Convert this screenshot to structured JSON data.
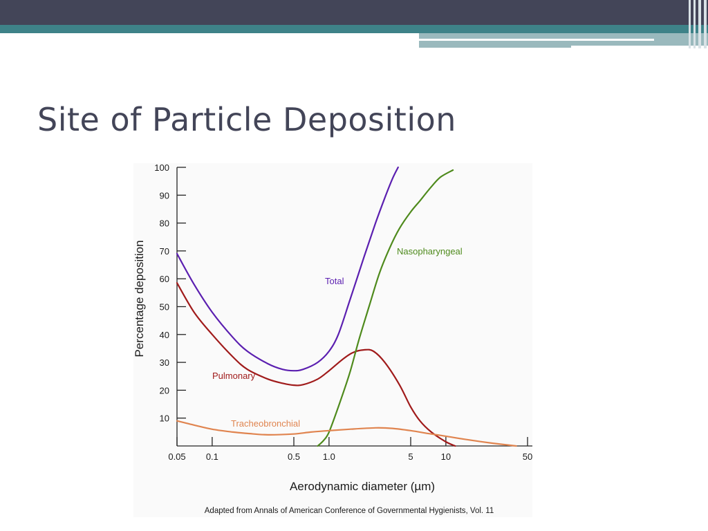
{
  "slide": {
    "title": "Site of Particle Deposition"
  },
  "colors": {
    "header_dark": "#434558",
    "header_teal": "#3e8288",
    "title_text": "#434558",
    "total": "#5b1fb0",
    "pulmonary": "#a01b1b",
    "nasopharyngeal": "#4e8a1c",
    "tracheobronchial": "#e0844f"
  },
  "chart_data": {
    "type": "line",
    "xlabel": "Aerodynamic diameter (µm)",
    "ylabel": "Percentage deposition",
    "x_scale": "log",
    "xlim": [
      0.05,
      50
    ],
    "ylim": [
      0,
      100
    ],
    "x_ticks": [
      {
        "value": 0.05,
        "label": "0.05"
      },
      {
        "value": 0.1,
        "label": "0.1"
      },
      {
        "value": 0.5,
        "label": "0.5"
      },
      {
        "value": 1.0,
        "label": "1.0"
      },
      {
        "value": 5,
        "label": "5"
      },
      {
        "value": 10,
        "label": "10"
      },
      {
        "value": 50,
        "label": "50"
      }
    ],
    "y_ticks": [
      {
        "value": 10,
        "label": "10"
      },
      {
        "value": 20,
        "label": "20"
      },
      {
        "value": 30,
        "label": "30"
      },
      {
        "value": 40,
        "label": "40"
      },
      {
        "value": 50,
        "label": "50"
      },
      {
        "value": 60,
        "label": "60"
      },
      {
        "value": 70,
        "label": "70"
      },
      {
        "value": 80,
        "label": "80"
      },
      {
        "value": 90,
        "label": "90"
      },
      {
        "value": 100,
        "label": "100"
      }
    ],
    "series": [
      {
        "key": "total",
        "name": "Total",
        "color": "#5b1fb0",
        "points": [
          [
            0.05,
            69
          ],
          [
            0.07,
            58
          ],
          [
            0.1,
            48
          ],
          [
            0.15,
            39
          ],
          [
            0.2,
            34
          ],
          [
            0.3,
            29.5
          ],
          [
            0.4,
            27.5
          ],
          [
            0.5,
            27
          ],
          [
            0.6,
            27.5
          ],
          [
            0.8,
            30
          ],
          [
            1.0,
            34
          ],
          [
            1.2,
            40
          ],
          [
            1.5,
            52
          ],
          [
            2.0,
            68
          ],
          [
            2.5,
            80
          ],
          [
            3.0,
            89
          ],
          [
            3.5,
            96
          ],
          [
            3.9,
            100
          ]
        ]
      },
      {
        "key": "pulmonary",
        "name": "Pulmonary",
        "color": "#a01b1b",
        "points": [
          [
            0.05,
            58.5
          ],
          [
            0.07,
            48
          ],
          [
            0.1,
            40
          ],
          [
            0.15,
            32
          ],
          [
            0.2,
            27.5
          ],
          [
            0.3,
            24
          ],
          [
            0.4,
            22.5
          ],
          [
            0.5,
            21.8
          ],
          [
            0.6,
            22
          ],
          [
            0.8,
            24
          ],
          [
            1.0,
            27
          ],
          [
            1.3,
            31
          ],
          [
            1.6,
            33.5
          ],
          [
            2.0,
            34.5
          ],
          [
            2.4,
            34
          ],
          [
            3.0,
            30
          ],
          [
            4.0,
            22
          ],
          [
            5.0,
            14
          ],
          [
            6.0,
            9
          ],
          [
            7.5,
            5
          ],
          [
            10,
            1.5
          ],
          [
            12,
            0
          ]
        ]
      },
      {
        "key": "nasopharyngeal",
        "name": "Nasopharyngeal",
        "color": "#4e8a1c",
        "points": [
          [
            0.8,
            0
          ],
          [
            0.9,
            2
          ],
          [
            1.0,
            5
          ],
          [
            1.2,
            14
          ],
          [
            1.5,
            26
          ],
          [
            1.8,
            38
          ],
          [
            2.2,
            50
          ],
          [
            2.7,
            62
          ],
          [
            3.3,
            71
          ],
          [
            4.0,
            78
          ],
          [
            5.0,
            84
          ],
          [
            6.0,
            88
          ],
          [
            7.5,
            93
          ],
          [
            9.0,
            96.5
          ],
          [
            11.5,
            99
          ]
        ]
      },
      {
        "key": "tracheobronchial",
        "name": "Tracheobronchial",
        "color": "#e0844f",
        "points": [
          [
            0.05,
            9
          ],
          [
            0.07,
            7.5
          ],
          [
            0.1,
            6
          ],
          [
            0.15,
            5
          ],
          [
            0.2,
            4.5
          ],
          [
            0.3,
            4
          ],
          [
            0.5,
            4.3
          ],
          [
            0.7,
            5
          ],
          [
            1.0,
            5.5
          ],
          [
            1.5,
            6
          ],
          [
            2.5,
            6.5
          ],
          [
            3.5,
            6.3
          ],
          [
            5.0,
            5.5
          ],
          [
            7.0,
            4.5
          ],
          [
            10,
            3.5
          ],
          [
            15,
            2.3
          ],
          [
            25,
            1
          ],
          [
            40,
            0
          ]
        ]
      }
    ],
    "labels": {
      "total": "Total",
      "pulmonary": "Pulmonary",
      "nasopharyngeal": "Nasopharyngeal",
      "tracheobronchial": "Tracheobronchial"
    },
    "source_note": "Adapted from Annals of American Conference of Governmental Hygienists, Vol. 11"
  }
}
